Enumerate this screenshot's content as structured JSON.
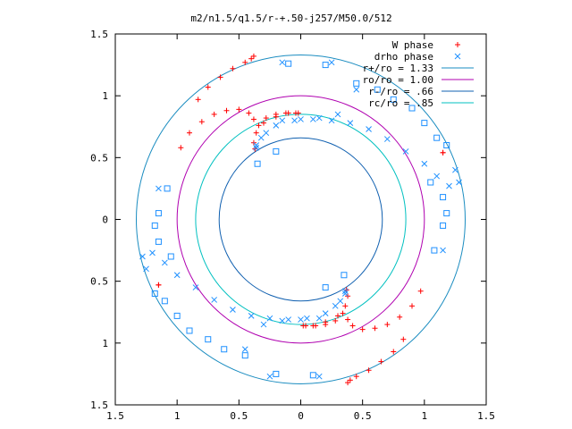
{
  "chart_data": {
    "type": "scatter",
    "title": "m2/n1.5/q1.5/r-+.50-j257/M50.0/512",
    "xlabel": "",
    "ylabel": "",
    "xlim": [
      -1.5,
      1.5
    ],
    "ylim": [
      -1.5,
      1.5
    ],
    "x_ticks": [
      {
        "value": -1.5,
        "label": "1.5"
      },
      {
        "value": -1.0,
        "label": "1"
      },
      {
        "value": -0.5,
        "label": "0.5"
      },
      {
        "value": 0,
        "label": "0"
      },
      {
        "value": 0.5,
        "label": "0.5"
      },
      {
        "value": 1.0,
        "label": "1"
      },
      {
        "value": 1.5,
        "label": "1.5"
      }
    ],
    "y_ticks": [
      {
        "value": 1.5,
        "label": "1.5"
      },
      {
        "value": 1.0,
        "label": "1"
      },
      {
        "value": 0.5,
        "label": "0.5"
      },
      {
        "value": 0,
        "label": "0"
      },
      {
        "value": -0.5,
        "label": "0.5"
      },
      {
        "value": -1.0,
        "label": "1"
      },
      {
        "value": -1.5,
        "label": "1.5"
      }
    ],
    "grid": false,
    "legend_position": "top-right",
    "series": [
      {
        "name": "W phase",
        "marker": "plus",
        "color": "#ff0000",
        "x": [
          -0.97,
          -0.9,
          -0.8,
          -0.7,
          -0.6,
          -0.5,
          -0.42,
          -0.38,
          -0.34,
          -0.28,
          -0.2,
          -0.12,
          -0.04,
          -0.37,
          -0.38,
          -0.36,
          -0.3,
          -0.2,
          -0.1,
          -0.02,
          -0.83,
          -0.75,
          -0.65,
          -0.55,
          -0.45,
          -0.4,
          -0.38,
          -1.15,
          1.15,
          0.97,
          0.9,
          0.8,
          0.7,
          0.6,
          0.5,
          0.42,
          0.38,
          0.34,
          0.28,
          0.2,
          0.12,
          0.04,
          0.37,
          0.38,
          0.36,
          0.3,
          0.2,
          0.1,
          0.02,
          0.83,
          0.75,
          0.65,
          0.55,
          0.45,
          0.4,
          0.38,
          1.15,
          -1.15
        ],
        "y": [
          0.58,
          0.7,
          0.79,
          0.85,
          0.88,
          0.89,
          0.86,
          0.81,
          0.76,
          0.82,
          0.85,
          0.86,
          0.86,
          0.57,
          0.62,
          0.7,
          0.78,
          0.83,
          0.86,
          0.86,
          0.97,
          1.07,
          1.15,
          1.22,
          1.27,
          1.3,
          1.32,
          -0.53,
          0.54,
          -0.58,
          -0.7,
          -0.79,
          -0.85,
          -0.88,
          -0.89,
          -0.86,
          -0.81,
          -0.76,
          -0.82,
          -0.85,
          -0.86,
          -0.86,
          -0.57,
          -0.62,
          -0.7,
          -0.78,
          -0.83,
          -0.86,
          -0.86,
          -0.97,
          -1.07,
          -1.15,
          -1.22,
          -1.27,
          -1.3,
          -1.32,
          0.54,
          -0.53
        ]
      },
      {
        "name": "drho phase",
        "marker": "cross",
        "color": "#1e90ff",
        "x": [
          -1.28,
          -1.2,
          -1.1,
          -1.0,
          -0.85,
          -0.7,
          -0.55,
          -0.4,
          -0.25,
          -0.1,
          0.05,
          0.2,
          0.32,
          0.36,
          -0.45,
          -0.3,
          -0.15,
          0.0,
          0.15,
          0.28,
          0.36,
          1.28,
          1.2,
          1.1,
          1.0,
          0.85,
          0.7,
          0.55,
          0.4,
          0.25,
          0.1,
          -0.05,
          -0.2,
          -0.32,
          -0.36,
          0.45,
          0.3,
          0.15,
          0.0,
          -0.15,
          -0.28,
          -0.36,
          -0.25,
          0.15,
          1.15,
          1.25,
          0.25,
          -0.15,
          -1.15,
          -1.25
        ],
        "y": [
          -0.3,
          -0.27,
          -0.35,
          -0.45,
          -0.55,
          -0.65,
          -0.73,
          -0.78,
          -0.8,
          -0.81,
          -0.8,
          -0.76,
          -0.66,
          -0.58,
          -1.05,
          -0.85,
          -0.82,
          -0.81,
          -0.8,
          -0.7,
          -0.6,
          0.3,
          0.27,
          0.35,
          0.45,
          0.55,
          0.65,
          0.73,
          0.78,
          0.8,
          0.81,
          0.8,
          0.76,
          0.66,
          0.58,
          1.05,
          0.85,
          0.82,
          0.81,
          0.8,
          0.7,
          0.6,
          -1.27,
          -1.27,
          -0.25,
          0.4,
          1.27,
          1.27,
          0.25,
          -0.4
        ]
      },
      {
        "name": "r+/ro = 1.33",
        "shape": "circle",
        "radius": 1.33,
        "color": "#1a8cc0"
      },
      {
        "name": "ro/ro = 1.00",
        "shape": "circle",
        "radius": 1.0,
        "color": "#b000b0"
      },
      {
        "name": "r-/ro = .66",
        "shape": "circle",
        "radius": 0.66,
        "color": "#1060b0"
      },
      {
        "name": "rc/ro = .85",
        "shape": "circle",
        "radius": 0.85,
        "color": "#00c0c0"
      }
    ],
    "extra_points": {
      "name": "",
      "marker": "square",
      "color": "#1e90ff",
      "x": [
        -0.1,
        0.2,
        0.45,
        0.62,
        0.75,
        0.9,
        1.0,
        1.1,
        1.18,
        -0.2,
        -0.35,
        -1.08,
        -1.15,
        -1.18,
        -1.15,
        -1.05,
        0.1,
        -0.2,
        -0.45,
        -0.62,
        -0.75,
        -0.9,
        -1.0,
        -1.1,
        -1.18,
        0.2,
        0.35,
        1.08,
        1.15,
        1.18,
        1.15,
        1.05
      ],
      "y": [
        1.26,
        1.25,
        1.1,
        1.05,
        0.97,
        0.9,
        0.78,
        0.66,
        0.6,
        0.55,
        0.45,
        0.25,
        0.05,
        -0.05,
        -0.18,
        -0.3,
        -1.26,
        -1.25,
        -1.1,
        -1.05,
        -0.97,
        -0.9,
        -0.78,
        -0.66,
        -0.6,
        -0.55,
        -0.45,
        -0.25,
        -0.05,
        0.05,
        0.18,
        0.3
      ]
    }
  }
}
